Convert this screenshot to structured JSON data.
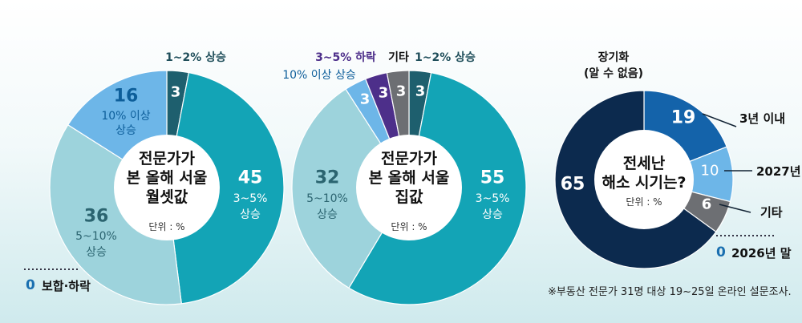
{
  "chart_data": [
    {
      "type": "pie",
      "title": "전문가가 본 올해 서울 월셋값",
      "unit": "단위 : %",
      "slices": [
        {
          "label": "1~2% 상승",
          "value": 3,
          "color": "#1e5f6e"
        },
        {
          "label": "3~5% 상승",
          "value": 45,
          "color": "#13a4b6"
        },
        {
          "label": "5~10% 상승",
          "value": 36,
          "color": "#9dd3dc"
        },
        {
          "label": "10% 이상 상승",
          "value": 16,
          "color": "#6db6e8"
        }
      ],
      "zero_note": {
        "value": "0",
        "label": "보합·하락"
      }
    },
    {
      "type": "pie",
      "title": "전문가가 본 올해 서울 집값",
      "unit": "단위 : %",
      "slices": [
        {
          "label": "1~2% 상승",
          "value": 3,
          "color": "#1e5f6e"
        },
        {
          "label": "3~5% 상승",
          "value": 55,
          "color": "#13a4b6"
        },
        {
          "label": "5~10% 상승",
          "value": 32,
          "color": "#9dd3dc"
        },
        {
          "label": "10% 이상 상승",
          "value": 3,
          "color": "#6db6e8"
        },
        {
          "label": "3~5% 하락",
          "value": 3,
          "color": "#4d2f8a"
        },
        {
          "label": "기타",
          "value": 3,
          "color": "#6d6f73"
        }
      ]
    },
    {
      "type": "pie",
      "title": "전세난 해소 시기는?",
      "unit": "단위 : %",
      "slices": [
        {
          "label": "3년 이내",
          "value": 19,
          "color": "#1463aa"
        },
        {
          "label": "2027년",
          "value": 10,
          "color": "#6db6e8"
        },
        {
          "label": "기타",
          "value": 6,
          "color": "#6d6f73"
        },
        {
          "label": "장기화 (알 수 없음)",
          "value": 65,
          "color": "#0c2a4e"
        }
      ],
      "zero_note": {
        "value": "0",
        "label": "2026년 말"
      }
    }
  ],
  "footnote": "※부동산 전문가 31명 대상 19~25일 온라인 설문조사."
}
